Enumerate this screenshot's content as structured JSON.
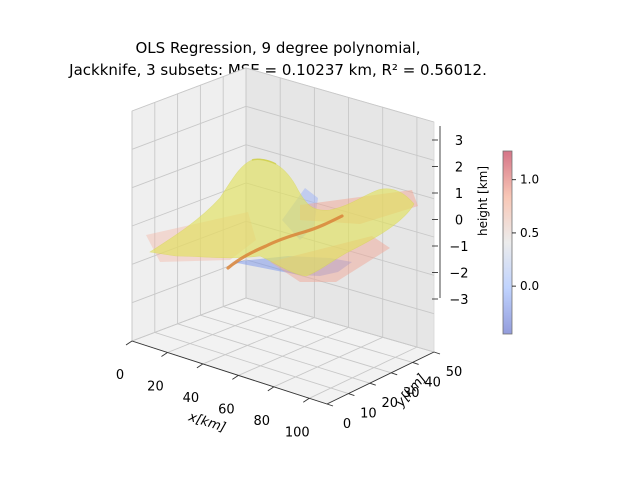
{
  "chart_data": {
    "type": "surface3d",
    "title_lines": [
      "OLS Regression, 9 degree polynomial,",
      "Jackknife, 3 subsets: MSE = 0.10237 km, R² = 0.56012."
    ],
    "xlabel": "x[km]",
    "ylabel": "y[km]",
    "zlabel": "",
    "x_ticks": [
      "0",
      "20",
      "40",
      "60",
      "80",
      "100"
    ],
    "y_ticks": [
      "0",
      "10",
      "20",
      "30",
      "40",
      "50"
    ],
    "z_ticks": [
      "−3",
      "−2",
      "−1",
      "0",
      "1",
      "2",
      "3"
    ],
    "xlim": [
      0,
      110
    ],
    "ylim": [
      0,
      50
    ],
    "zlim": [
      -3,
      3
    ],
    "colorbar": {
      "label": "height [km]",
      "ticks": [
        "0.0",
        "0.5",
        "1.0"
      ],
      "range": [
        -0.45,
        1.27
      ],
      "colormap": "coolwarm"
    },
    "series": [
      {
        "name": "",
        "kind": "terrain-data",
        "colormap": "coolwarm"
      },
      {
        "name": "",
        "kind": "fitted-surface",
        "color": "#e3e36a"
      }
    ],
    "fit": {
      "degree": 9,
      "subsets": 3,
      "mse_km": 0.10237,
      "r2": 0.56012
    }
  }
}
